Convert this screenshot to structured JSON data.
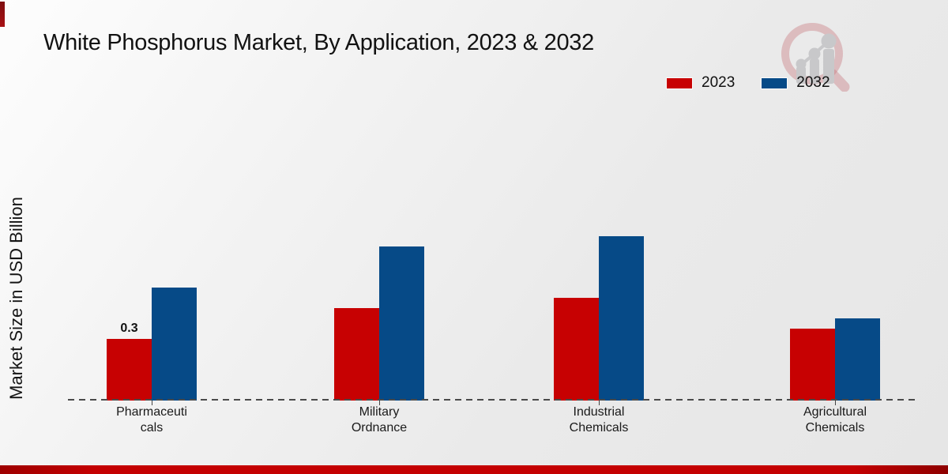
{
  "header": {
    "title": "White Phosphorus Market, By Application, 2023 & 2032"
  },
  "axis": {
    "ylabel": "Market Size in USD Billion"
  },
  "legend": {
    "items": [
      {
        "label": "2023",
        "color": "#c70102"
      },
      {
        "label": "2032",
        "color": "#064a87"
      }
    ]
  },
  "branding": {
    "logo_icon": "magnifier-bar-chart-logo",
    "accent_color": "#c40001"
  },
  "chart_data": {
    "type": "bar",
    "title": "White Phosphorus Market, By Application, 2023 & 2032",
    "xlabel": "",
    "ylabel": "Market Size in USD Billion",
    "categories": [
      "Pharmaceuticals",
      "Military Ordnance",
      "Industrial Chemicals",
      "Agricultural Chemicals"
    ],
    "category_label_lines": [
      [
        "Pharmaceuti",
        "cals"
      ],
      [
        "Military",
        "Ordnance"
      ],
      [
        "Industrial",
        "Chemicals"
      ],
      [
        "Agricultural",
        "Chemicals"
      ]
    ],
    "series": [
      {
        "name": "2023",
        "color": "#c70102",
        "values": [
          0.3,
          0.45,
          0.5,
          0.35
        ]
      },
      {
        "name": "2032",
        "color": "#064a87",
        "values": [
          0.55,
          0.75,
          0.8,
          0.4
        ]
      }
    ],
    "annotations": [
      {
        "series": "2023",
        "category": "Pharmaceuticals",
        "text": "0.3"
      }
    ],
    "ylim": [
      0,
      1.0
    ],
    "grid": false,
    "legend_position": "top-right",
    "baseline_style": "dashed"
  }
}
